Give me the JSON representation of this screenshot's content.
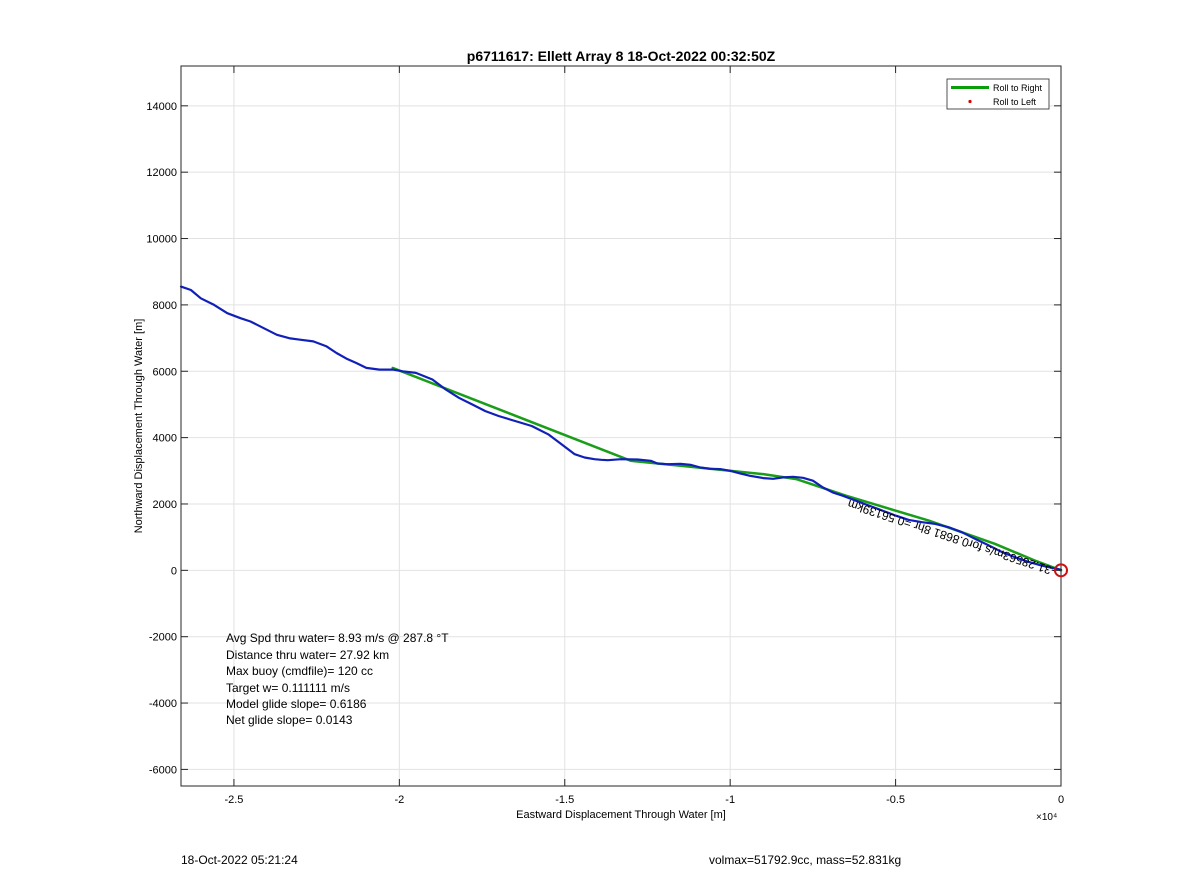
{
  "chart_data": {
    "type": "line",
    "title": "p6711617: Ellett Array 8 18-Oct-2022 00:32:50Z",
    "xlabel": "Eastward Displacement Through Water [m]",
    "ylabel": "Northward Displacement Through Water [m]",
    "x_exponent_label": "×10⁴",
    "xlim": [
      -26600,
      0
    ],
    "ylim": [
      -6500,
      15200
    ],
    "x_ticks": [
      -25000,
      -20000,
      -15000,
      -10000,
      -5000,
      0
    ],
    "x_tick_labels": [
      "-2.5",
      "-2",
      "-1.5",
      "-1",
      "-0.5",
      "0"
    ],
    "y_ticks": [
      -6000,
      -4000,
      -2000,
      0,
      2000,
      4000,
      6000,
      8000,
      10000,
      12000,
      14000
    ],
    "y_tick_labels": [
      "-6000",
      "-4000",
      "-2000",
      "0",
      "2000",
      "4000",
      "6000",
      "8000",
      "10000",
      "12000",
      "14000"
    ],
    "grid": true,
    "legend_position": "top-right",
    "legend": [
      {
        "label": "Roll to Right",
        "color": "#0a9e0a",
        "style": "line"
      },
      {
        "label": "Roll to Left",
        "color": "#dd0000",
        "style": "dot"
      }
    ],
    "series": [
      {
        "name": "Roll to Right",
        "color": "#1a9e1a",
        "x": [
          -20200,
          -13000,
          -11500,
          -9000,
          -8000,
          -6500,
          -4000,
          -2000,
          -800,
          0
        ],
        "y": [
          6100,
          3300,
          3150,
          2900,
          2750,
          2250,
          1500,
          800,
          300,
          0
        ]
      },
      {
        "color": "#1020b8",
        "x": [
          -26600,
          -26300,
          -26000,
          -25600,
          -25200,
          -24800,
          -24500,
          -24300,
          -24000,
          -23700,
          -23300,
          -23000,
          -22600,
          -22200,
          -21900,
          -21600,
          -21300,
          -21000,
          -20600,
          -20200,
          -19900,
          -19500,
          -19000,
          -18600,
          -18200,
          -17800,
          -17400,
          -17000,
          -16500,
          -16000,
          -15500,
          -15100,
          -14700,
          -14400,
          -14100,
          -13900,
          -13700,
          -13300,
          -12800,
          -12400,
          -12200,
          -11900,
          -11500,
          -11200,
          -10900,
          -10600,
          -10300,
          -10000,
          -9700,
          -9400,
          -9000,
          -8700,
          -8400,
          -8100,
          -7800,
          -7500,
          -7200,
          -6900,
          -6600,
          -6200,
          -5800,
          -5400,
          -5000,
          -4600,
          -4200,
          -3800,
          -3400,
          -3000,
          -2600,
          -2200,
          -1800,
          -1400,
          -1000,
          -600,
          -300,
          0
        ],
        "y": [
          8550,
          8450,
          8200,
          8000,
          7750,
          7600,
          7500,
          7400,
          7250,
          7100,
          6990,
          6950,
          6900,
          6750,
          6550,
          6380,
          6250,
          6100,
          6050,
          6050,
          6000,
          5950,
          5750,
          5450,
          5200,
          5000,
          4800,
          4650,
          4500,
          4350,
          4100,
          3800,
          3500,
          3400,
          3350,
          3330,
          3320,
          3350,
          3340,
          3300,
          3220,
          3200,
          3210,
          3180,
          3100,
          3060,
          3050,
          3000,
          2920,
          2850,
          2780,
          2760,
          2800,
          2820,
          2790,
          2700,
          2500,
          2350,
          2250,
          2100,
          1950,
          1800,
          1650,
          1520,
          1450,
          1400,
          1300,
          1150,
          950,
          760,
          560,
          400,
          260,
          150,
          80,
          20
        ]
      }
    ],
    "annotations": {
      "rotated_label": "-31.28563m/s for0.8681 8hr =0.56139km",
      "stats": [
        "Avg Spd thru water=  8.93 m/s @ 287.8 °T",
        "Distance thru water= 27.92 km",
        "Max buoy (cmdfile)= 120 cc",
        "Target w= 0.111111 m/s",
        "Model glide slope= 0.6186",
        "Net glide slope= 0.0143"
      ]
    }
  },
  "footer": {
    "timestamp": "18-Oct-2022 05:21:24",
    "mass_info": "volmax=51792.9cc, mass=52.831kg"
  }
}
